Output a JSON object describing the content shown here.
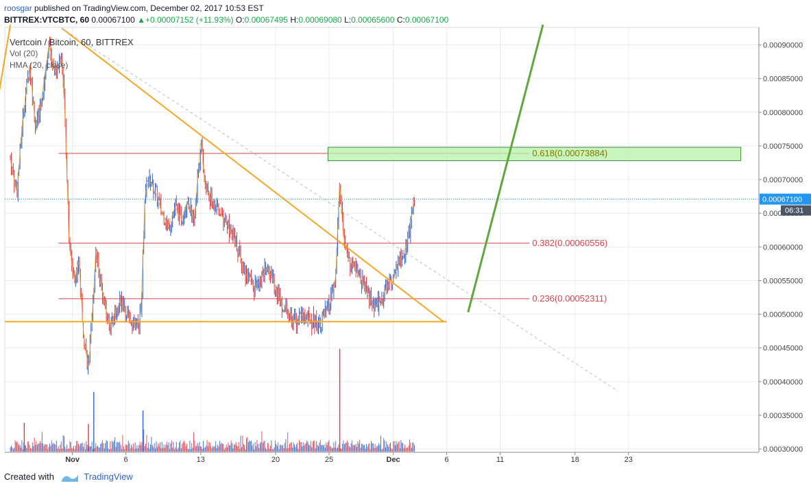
{
  "header": {
    "user": "roosgar",
    "published": " published on TradingView.com, December 02, 2017 10:53 EST",
    "symbol": "BITTREX:VTCBTC, 60",
    "last": "0.00067100",
    "change": "+0.00007152 (+11.93%)",
    "open_label": "O:",
    "open": "0.00067495",
    "high_label": "H:",
    "high": "0.00069080",
    "low_label": "L:",
    "low": "0.00065600",
    "close_label": "C:",
    "close": "0.00067100"
  },
  "legend": {
    "title": "Vertcoin / Bitcoin, 60, BITTREX",
    "vol": "Vol (20)",
    "hma": "HMA (20, close)"
  },
  "footer": {
    "created": "Created with",
    "brand": "TradingView"
  },
  "colors": {
    "up": "#1aa64a",
    "down": "#e0353d",
    "accent": "#2962c8",
    "triangle": "#f5a623",
    "channel": "#5fa63c",
    "fib": "#d9434a",
    "zone_fill": "#b6f2a8",
    "zone_stroke": "#3f8c3a",
    "price_tag": "#2196f3"
  },
  "chart_data": {
    "type": "candlestick",
    "title": "Vertcoin / Bitcoin, 60, BITTREX",
    "x_ticks": [
      {
        "label": "Nov",
        "day": 1,
        "bold": true
      },
      {
        "label": "6",
        "day": 6
      },
      {
        "label": "13",
        "day": 13
      },
      {
        "label": "20",
        "day": 20
      },
      {
        "label": "25",
        "day": 25
      },
      {
        "label": "Dec",
        "day": 31,
        "bold": true
      },
      {
        "label": "6",
        "day": 36
      },
      {
        "label": "11",
        "day": 41
      },
      {
        "label": "18",
        "day": 48
      },
      {
        "label": "23",
        "day": 53
      }
    ],
    "y_ticks": [
      "0.00030000",
      "0.00035000",
      "0.00040000",
      "0.00045000",
      "0.00050000",
      "0.00055000",
      "0.00060000",
      "0.00065000",
      "0.00070000",
      "0.00075000",
      "0.00080000",
      "0.00085000",
      "0.00090000"
    ],
    "y_tick_values": [
      0.0003,
      0.00035,
      0.0004,
      0.00045,
      0.0005,
      0.00055,
      0.0006,
      0.00065,
      0.0007,
      0.00075,
      0.0008,
      0.00085,
      0.0009
    ],
    "ylim": [
      0.000295,
      0.000926
    ],
    "last_price": 0.000671,
    "last_price_label": "0.00067100",
    "countdown_label": "06:31",
    "price_path": [
      [
        -4.8,
        0.00073
      ],
      [
        -4.2,
        0.00068
      ],
      [
        -3.6,
        0.0008
      ],
      [
        -3.0,
        0.00087
      ],
      [
        -2.4,
        0.00077
      ],
      [
        -1.8,
        0.00083
      ],
      [
        -1.2,
        0.0009
      ],
      [
        -0.6,
        0.00086
      ],
      [
        0.0,
        0.00088
      ],
      [
        0.3,
        0.0008
      ],
      [
        0.7,
        0.0006
      ],
      [
        1.2,
        0.00055
      ],
      [
        1.6,
        0.00058
      ],
      [
        2.0,
        0.00048
      ],
      [
        2.3,
        0.00044
      ],
      [
        2.5,
        0.00042
      ],
      [
        2.8,
        0.00048
      ],
      [
        3.2,
        0.0006
      ],
      [
        3.6,
        0.00055
      ],
      [
        4.0,
        0.00052
      ],
      [
        4.5,
        0.00048
      ],
      [
        5.0,
        0.0005
      ],
      [
        5.5,
        0.00052
      ],
      [
        6.0,
        0.0005
      ],
      [
        6.5,
        0.00049
      ],
      [
        7.0,
        0.00048
      ],
      [
        7.4,
        0.0005
      ],
      [
        7.8,
        0.00068
      ],
      [
        8.2,
        0.0007
      ],
      [
        8.8,
        0.00068
      ],
      [
        9.4,
        0.00065
      ],
      [
        10.0,
        0.00063
      ],
      [
        10.6,
        0.00066
      ],
      [
        11.2,
        0.00064
      ],
      [
        11.8,
        0.00067
      ],
      [
        12.4,
        0.00064
      ],
      [
        13.0,
        0.00076
      ],
      [
        13.4,
        0.00069
      ],
      [
        14.0,
        0.00067
      ],
      [
        14.8,
        0.00065
      ],
      [
        15.6,
        0.00063
      ],
      [
        16.4,
        0.0006
      ],
      [
        17.2,
        0.00056
      ],
      [
        18.0,
        0.00054
      ],
      [
        18.6,
        0.00055
      ],
      [
        19.2,
        0.00057
      ],
      [
        19.8,
        0.00055
      ],
      [
        20.4,
        0.00052
      ],
      [
        21.0,
        0.00051
      ],
      [
        21.8,
        0.00049
      ],
      [
        22.6,
        0.0005
      ],
      [
        23.4,
        0.00049
      ],
      [
        24.2,
        0.00049
      ],
      [
        25.0,
        0.00051
      ],
      [
        25.6,
        0.00055
      ],
      [
        26.0,
        0.0007
      ],
      [
        26.3,
        0.00062
      ],
      [
        26.8,
        0.00058
      ],
      [
        27.4,
        0.00057
      ],
      [
        28.0,
        0.00055
      ],
      [
        28.6,
        0.00053
      ],
      [
        29.2,
        0.00051
      ],
      [
        29.8,
        0.00052
      ],
      [
        30.4,
        0.00054
      ],
      [
        31.0,
        0.00055
      ],
      [
        31.6,
        0.00058
      ],
      [
        32.2,
        0.0006
      ],
      [
        32.6,
        0.00063
      ],
      [
        33.0,
        0.00068
      ]
    ],
    "price_series_note": "",
    "volume_spikes": [
      {
        "day": 2.5,
        "value": 0.27,
        "color": "down"
      },
      {
        "day": 3.0,
        "value": 0.58,
        "color": "up"
      },
      {
        "day": 7.6,
        "value": 0.4,
        "color": "up"
      },
      {
        "day": 26.0,
        "value": 1.0,
        "color": "down"
      },
      {
        "day": -3.5,
        "value": 0.28,
        "color": "down"
      }
    ],
    "hlines": [
      {
        "type": "support",
        "value": 0.000489,
        "from_day": -6,
        "to_day": 36
      }
    ],
    "fib_levels": [
      {
        "ratio": "0.236",
        "value": 0.00052311,
        "label": "0.236(0.00052311)"
      },
      {
        "ratio": "0.382",
        "value": 0.00060556,
        "label": "0.382(0.00060556)"
      },
      {
        "ratio": "0.618",
        "value": 0.00073884,
        "label": "0.618(0.00073884)"
      }
    ],
    "fib_from_day": -0.3,
    "fib_to_day": 53.5,
    "fib_label_day": 44,
    "zone": {
      "from_day": 24.9,
      "to_day": 63.5,
      "bottom": 0.000728,
      "top": 0.000748
    },
    "trendlines": [
      {
        "name": "triangle-top",
        "from": [
          0.0,
          0.000925
        ],
        "to": [
          35.7,
          0.000489
        ],
        "color": "triangle"
      },
      {
        "name": "triangle-left",
        "from": [
          -6.0,
          0.000816
        ],
        "to": [
          -4.8,
          0.00093
        ],
        "color": "triangle"
      },
      {
        "name": "dashed-trend",
        "from": [
          0.0,
          0.000925
        ],
        "to": [
          52.0,
          0.000386
        ],
        "color": "gray",
        "dashed": true
      },
      {
        "name": "projection",
        "from": [
          38.0,
          0.000503
        ],
        "to": [
          45.0,
          0.00093
        ],
        "color": "channel"
      }
    ]
  }
}
